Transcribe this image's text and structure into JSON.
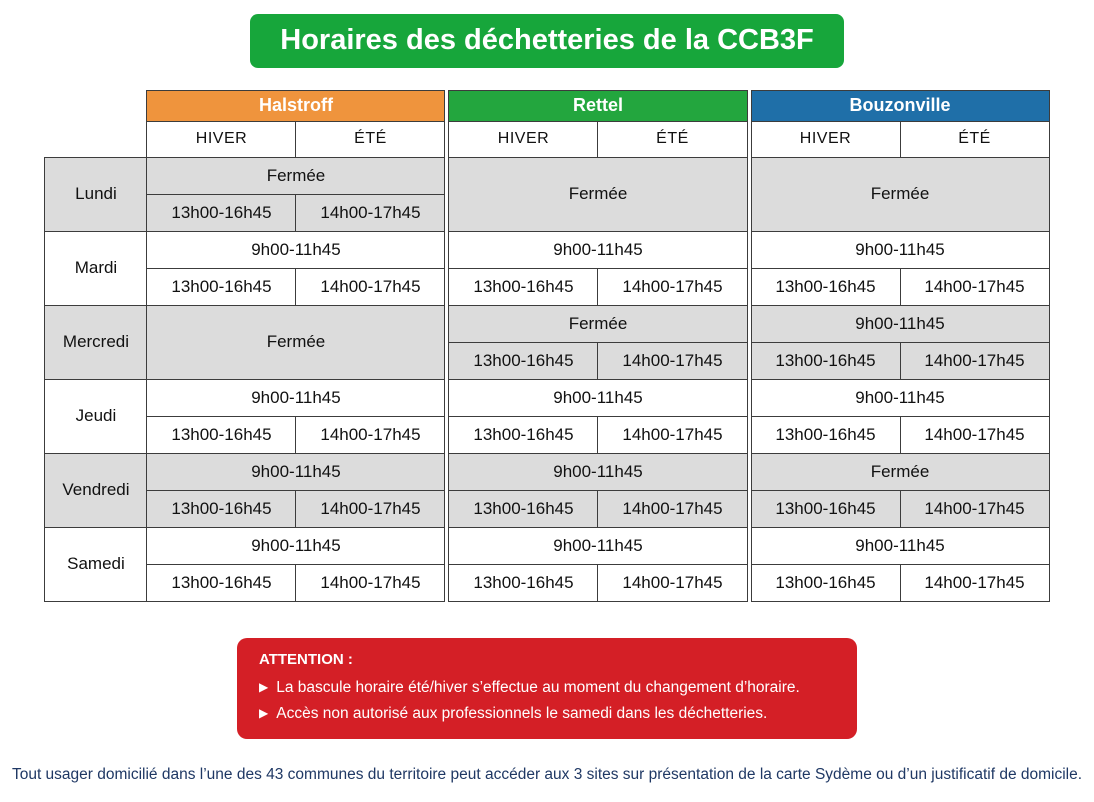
{
  "title": "Horaires des déchetteries de la CCB3F",
  "seasons": {
    "hiver": "HIVER",
    "ete": "ÉTÉ"
  },
  "sites": [
    {
      "name": "Halstroff",
      "color": "#ef943d"
    },
    {
      "name": "Rettel",
      "color": "#23a63e"
    },
    {
      "name": "Bouzonville",
      "color": "#1f6fa8"
    }
  ],
  "days": [
    {
      "label": "Lundi",
      "cells": [
        {
          "am": "Fermée",
          "pm_hiver": "13h00-16h45",
          "pm_ete": "14h00-17h45"
        },
        {
          "am": "Fermée"
        },
        {
          "am": "Fermée"
        }
      ]
    },
    {
      "label": "Mardi",
      "cells": [
        {
          "am": "9h00-11h45",
          "pm_hiver": "13h00-16h45",
          "pm_ete": "14h00-17h45"
        },
        {
          "am": "9h00-11h45",
          "pm_hiver": "13h00-16h45",
          "pm_ete": "14h00-17h45"
        },
        {
          "am": "9h00-11h45",
          "pm_hiver": "13h00-16h45",
          "pm_ete": "14h00-17h45"
        }
      ]
    },
    {
      "label": "Mercredi",
      "cells": [
        {
          "am": "Fermée"
        },
        {
          "am": "Fermée",
          "pm_hiver": "13h00-16h45",
          "pm_ete": "14h00-17h45"
        },
        {
          "am": "9h00-11h45",
          "pm_hiver": "13h00-16h45",
          "pm_ete": "14h00-17h45"
        }
      ]
    },
    {
      "label": "Jeudi",
      "cells": [
        {
          "am": "9h00-11h45",
          "pm_hiver": "13h00-16h45",
          "pm_ete": "14h00-17h45"
        },
        {
          "am": "9h00-11h45",
          "pm_hiver": "13h00-16h45",
          "pm_ete": "14h00-17h45"
        },
        {
          "am": "9h00-11h45",
          "pm_hiver": "13h00-16h45",
          "pm_ete": "14h00-17h45"
        }
      ]
    },
    {
      "label": "Vendredi",
      "cells": [
        {
          "am": "9h00-11h45",
          "pm_hiver": "13h00-16h45",
          "pm_ete": "14h00-17h45"
        },
        {
          "am": "9h00-11h45",
          "pm_hiver": "13h00-16h45",
          "pm_ete": "14h00-17h45"
        },
        {
          "am": "Fermée",
          "pm_hiver": "13h00-16h45",
          "pm_ete": "14h00-17h45"
        }
      ]
    },
    {
      "label": "Samedi",
      "cells": [
        {
          "am": "9h00-11h45",
          "pm_hiver": "13h00-16h45",
          "pm_ete": "14h00-17h45"
        },
        {
          "am": "9h00-11h45",
          "pm_hiver": "13h00-16h45",
          "pm_ete": "14h00-17h45"
        },
        {
          "am": "9h00-11h45",
          "pm_hiver": "13h00-16h45",
          "pm_ete": "14h00-17h45"
        }
      ]
    }
  ],
  "attention": {
    "heading": "ATTENTION :",
    "bullet_icon": "▶",
    "items": [
      "La bascule horaire été/hiver s’effectue au moment du changement d’horaire.",
      "Accès non autorisé aux professionnels le samedi dans les déchetteries."
    ]
  },
  "footer": "Tout usager domicilié dans l’une des 43 communes du territoire peut accéder aux 3 sites sur présentation de la carte Sydème ou d’un justificatif de domicile.",
  "colors": {
    "title_bg": "#17a63b",
    "halstroff": "#ef943d",
    "rettel": "#23a63e",
    "bouzonville": "#1f6fa8",
    "row_shade": "#dcdcdc",
    "attention_bg": "#d41f26",
    "footer_text": "#1f3864"
  }
}
